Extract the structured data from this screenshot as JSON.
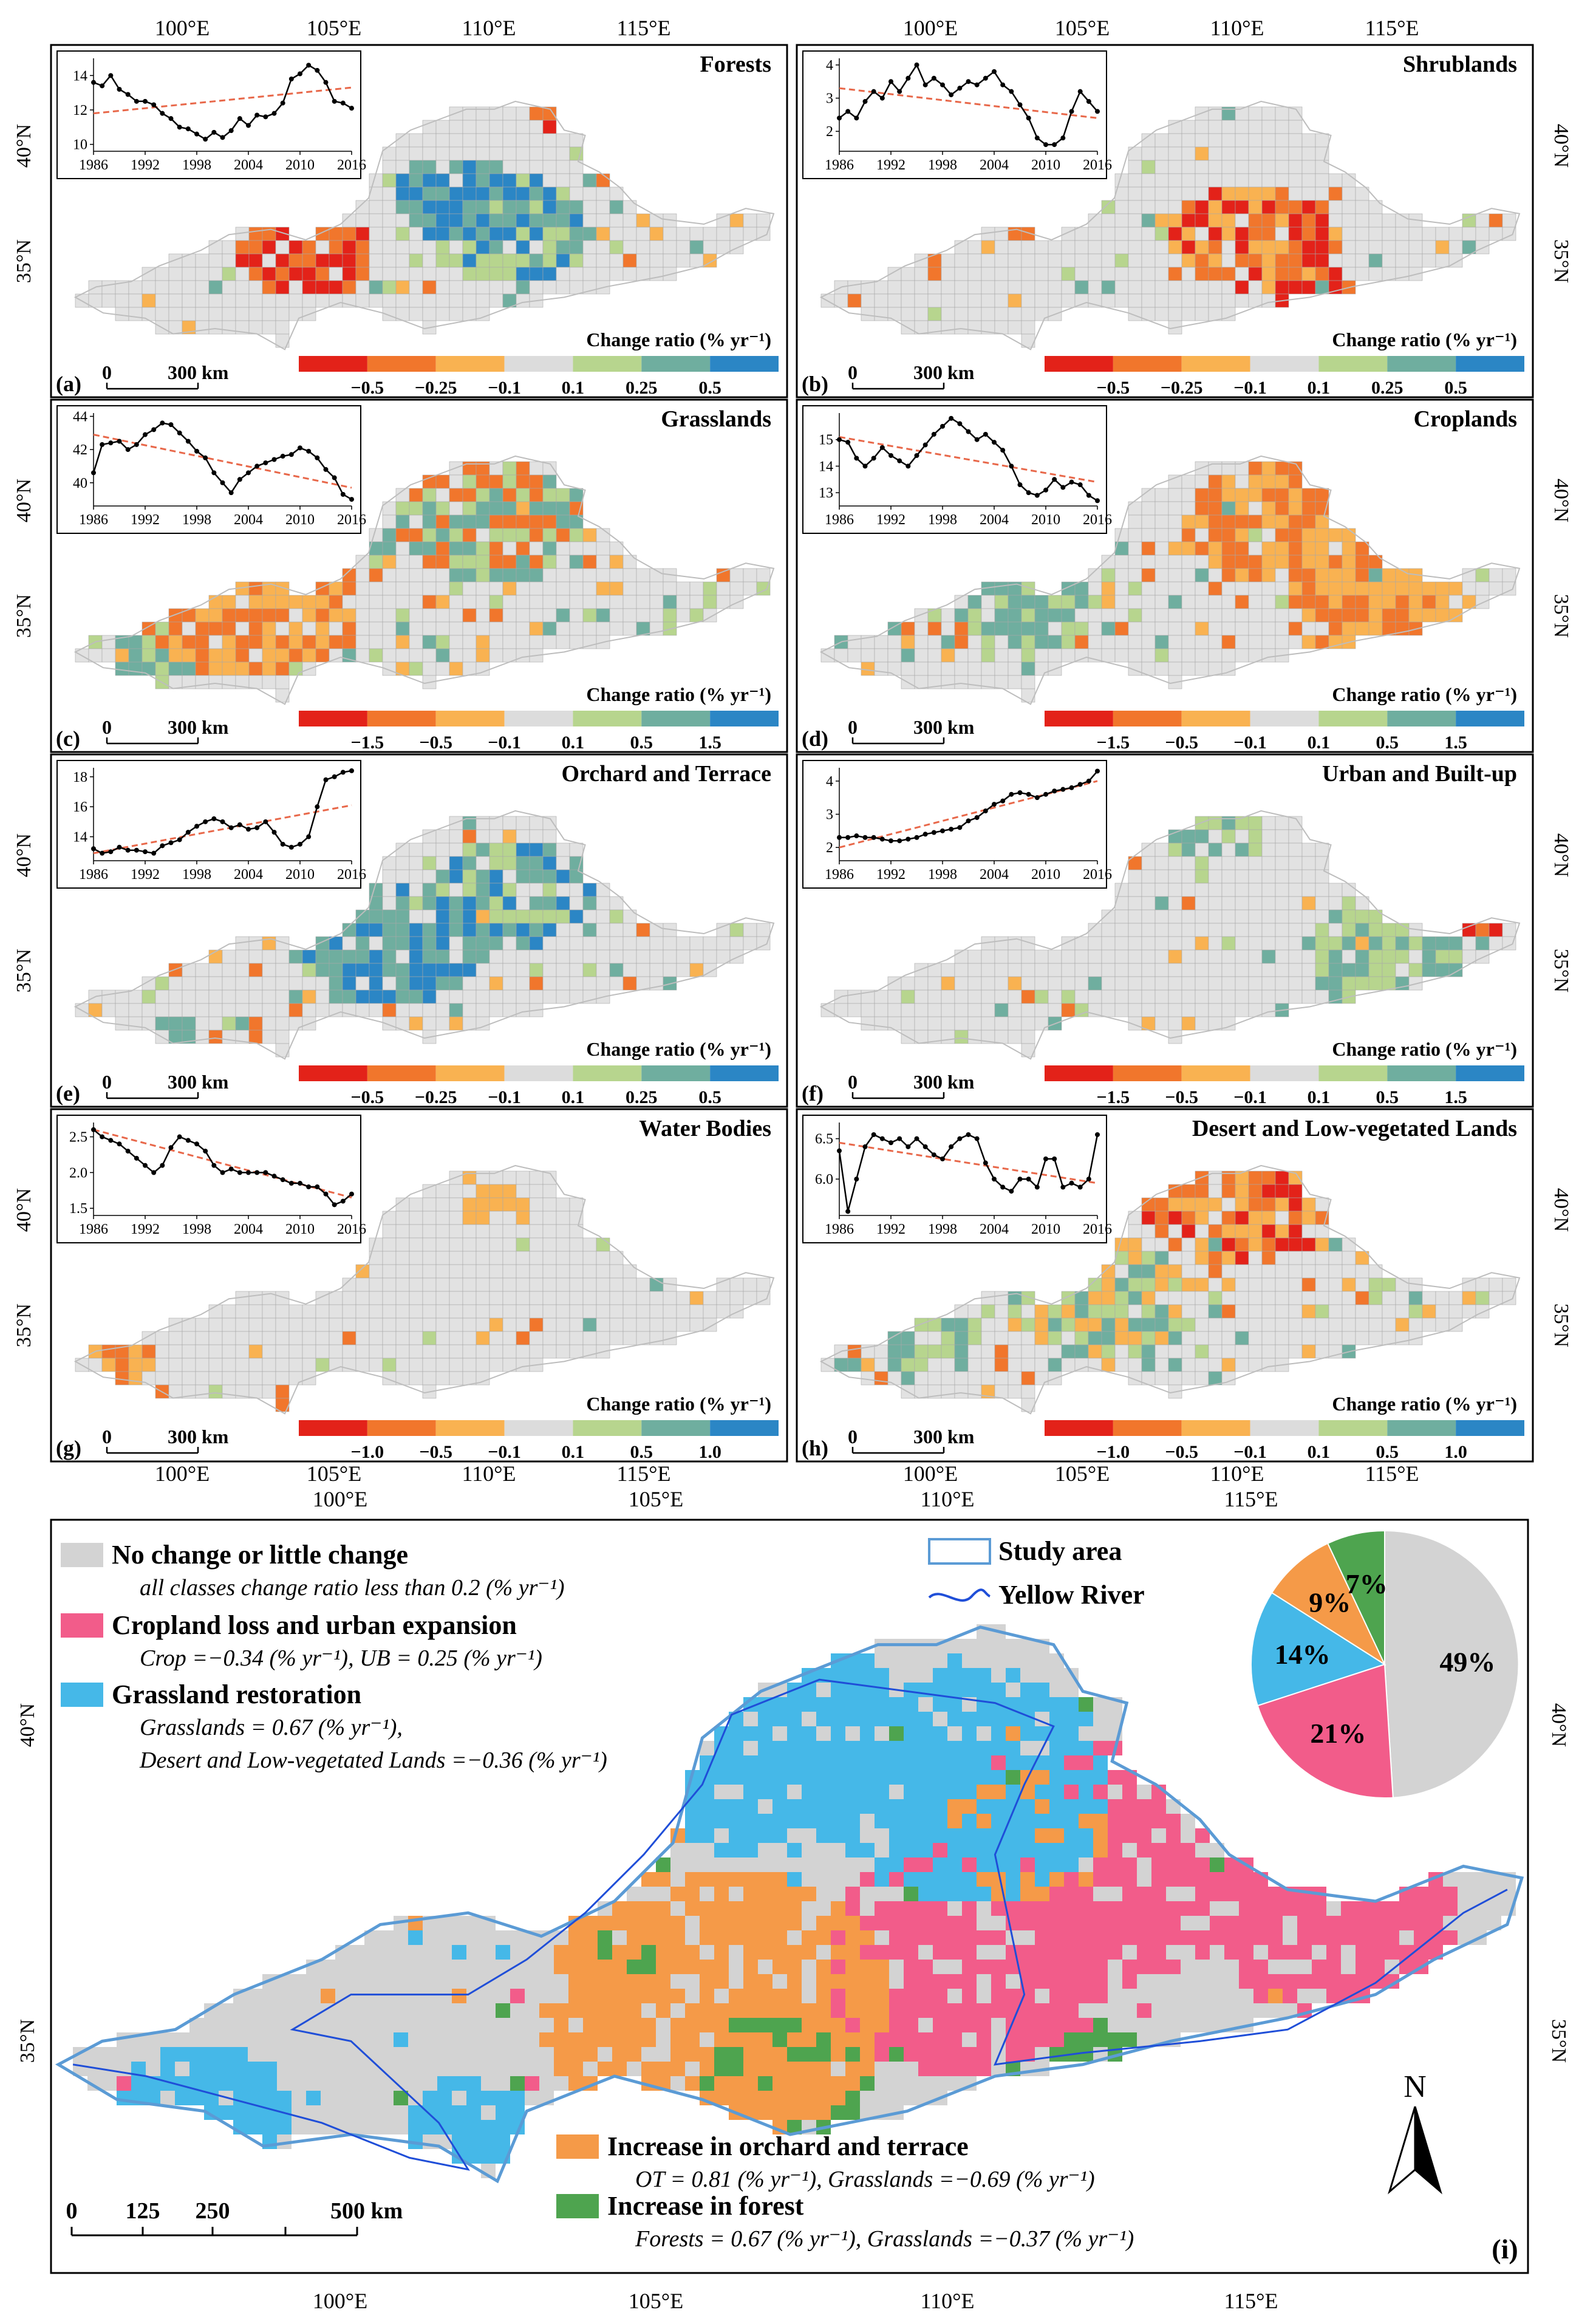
{
  "axes": {
    "top_lon": [
      "100°E",
      "105°E",
      "110°E",
      "115°E"
    ],
    "mid_left_lon": [
      "100°E",
      "105°E",
      "110°E",
      "115°E"
    ],
    "mid_left_lon2": [
      "100°E",
      "105°E"
    ],
    "mid_right_lon": [
      "100°E",
      "105°E",
      "110°E",
      "115°E"
    ],
    "mid_right_lon2": [
      "110°E",
      "115°E"
    ],
    "bottom_lon": [
      "100°E",
      "105°E",
      "110°E",
      "115°E"
    ],
    "lat": [
      "40°N",
      "35°N"
    ]
  },
  "panels": [
    {
      "id": "a",
      "letter": "(a)",
      "title": "Forests",
      "legend_title": "Change ratio (% yr⁻¹)",
      "legend_ticks": [
        "−0.5",
        "−0.25",
        "−0.1",
        "0.1",
        "0.25",
        "0.5"
      ],
      "scale_label": "300 km",
      "scale_zero": "0",
      "inset": {
        "years": [
          "1986",
          "1992",
          "1998",
          "2004",
          "2010",
          "2016"
        ],
        "yticks": [
          "10",
          "12",
          "14"
        ],
        "ymin": 9.6,
        "ymax": 15.0,
        "values": [
          13.6,
          13.4,
          14.0,
          13.2,
          12.9,
          12.5,
          12.5,
          12.3,
          11.8,
          11.5,
          11.0,
          10.9,
          10.6,
          10.3,
          10.7,
          10.4,
          10.8,
          11.5,
          11.1,
          11.7,
          11.6,
          11.8,
          12.4,
          13.8,
          14.1,
          14.6,
          14.3,
          13.6,
          12.5,
          12.4,
          12.1
        ],
        "trend": [
          11.8,
          13.3
        ]
      }
    },
    {
      "id": "b",
      "letter": "(b)",
      "title": "Shrublands",
      "legend_title": "Change ratio (% yr⁻¹)",
      "legend_ticks": [
        "−0.5",
        "−0.25",
        "−0.1",
        "0.1",
        "0.25",
        "0.5"
      ],
      "scale_label": "300 km",
      "scale_zero": "0",
      "inset": {
        "years": [
          "1986",
          "1992",
          "1998",
          "2004",
          "2010",
          "2016"
        ],
        "yticks": [
          "2",
          "3",
          "4"
        ],
        "ymin": 1.4,
        "ymax": 4.2,
        "values": [
          2.4,
          2.6,
          2.4,
          2.9,
          3.2,
          3.0,
          3.5,
          3.2,
          3.6,
          4.0,
          3.4,
          3.6,
          3.4,
          3.1,
          3.3,
          3.5,
          3.4,
          3.6,
          3.8,
          3.4,
          3.2,
          2.8,
          2.4,
          1.8,
          1.6,
          1.6,
          1.8,
          2.6,
          3.2,
          2.9,
          2.6
        ],
        "trend": [
          3.3,
          2.4
        ]
      }
    },
    {
      "id": "c",
      "letter": "(c)",
      "title": "Grasslands",
      "legend_title": "Change ratio (% yr⁻¹)",
      "legend_ticks": [
        "−1.5",
        "−0.5",
        "−0.1",
        "0.1",
        "0.5",
        "1.5"
      ],
      "scale_label": "300 km",
      "scale_zero": "0",
      "inset": {
        "years": [
          "1986",
          "1992",
          "1998",
          "2004",
          "2010",
          "2016"
        ],
        "yticks": [
          "40",
          "42",
          "44"
        ],
        "ymin": 38.6,
        "ymax": 44.2,
        "values": [
          40.6,
          42.3,
          42.4,
          42.5,
          42.0,
          42.3,
          42.9,
          43.2,
          43.6,
          43.5,
          43.0,
          42.5,
          41.9,
          41.5,
          40.6,
          40.0,
          39.4,
          40.2,
          40.6,
          41.0,
          41.2,
          41.4,
          41.6,
          41.7,
          42.1,
          41.9,
          41.5,
          40.8,
          40.3,
          39.3,
          39.0
        ],
        "trend": [
          42.9,
          39.7
        ]
      }
    },
    {
      "id": "d",
      "letter": "(d)",
      "title": "Croplands",
      "legend_title": "Change ratio (% yr⁻¹)",
      "legend_ticks": [
        "−1.5",
        "−0.5",
        "−0.1",
        "0.1",
        "0.5",
        "1.5"
      ],
      "scale_label": "300 km",
      "scale_zero": "0",
      "inset": {
        "years": [
          "1986",
          "1992",
          "1998",
          "2004",
          "2010",
          "2016"
        ],
        "yticks": [
          "13",
          "14",
          "15"
        ],
        "ymin": 12.5,
        "ymax": 16.0,
        "values": [
          15.0,
          14.9,
          14.3,
          14.0,
          14.3,
          14.7,
          14.4,
          14.2,
          14.0,
          14.4,
          14.8,
          15.2,
          15.5,
          15.8,
          15.6,
          15.3,
          15.0,
          15.2,
          14.9,
          14.6,
          14.0,
          13.3,
          13.0,
          12.9,
          13.1,
          13.5,
          13.2,
          13.4,
          13.3,
          12.9,
          12.7
        ],
        "trend": [
          15.1,
          13.4
        ]
      }
    },
    {
      "id": "e",
      "letter": "(e)",
      "title": "Orchard and Terrace",
      "legend_title": "Change ratio (% yr⁻¹)",
      "legend_ticks": [
        "−0.5",
        "−0.25",
        "−0.1",
        "0.1",
        "0.25",
        "0.5"
      ],
      "scale_label": "300 km",
      "scale_zero": "0",
      "inset": {
        "years": [
          "1986",
          "1992",
          "1998",
          "2004",
          "2010",
          "2016"
        ],
        "yticks": [
          "14",
          "16",
          "18"
        ],
        "ymin": 12.4,
        "ymax": 18.6,
        "values": [
          13.2,
          12.9,
          13.0,
          13.3,
          13.1,
          13.1,
          13.0,
          12.9,
          13.4,
          13.6,
          13.8,
          14.3,
          14.7,
          15.0,
          15.2,
          15.0,
          14.6,
          14.8,
          14.5,
          14.6,
          15.0,
          14.3,
          13.5,
          13.3,
          13.5,
          14.0,
          16.0,
          17.8,
          18.0,
          18.3,
          18.4
        ],
        "trend": [
          12.9,
          16.1
        ]
      }
    },
    {
      "id": "f",
      "letter": "(f)",
      "title": "Urban and Built-up",
      "legend_title": "Change ratio (% yr⁻¹)",
      "legend_ticks": [
        "−1.5",
        "−0.5",
        "−0.1",
        "0.1",
        "0.5",
        "1.5"
      ],
      "scale_label": "300 km",
      "scale_zero": "0",
      "inset": {
        "years": [
          "1986",
          "1992",
          "1998",
          "2004",
          "2010",
          "2016"
        ],
        "yticks": [
          "2",
          "3",
          "4"
        ],
        "ymin": 1.6,
        "ymax": 4.4,
        "values": [
          2.3,
          2.3,
          2.35,
          2.3,
          2.3,
          2.25,
          2.2,
          2.2,
          2.25,
          2.3,
          2.4,
          2.45,
          2.5,
          2.55,
          2.6,
          2.8,
          2.9,
          3.1,
          3.3,
          3.4,
          3.6,
          3.65,
          3.6,
          3.5,
          3.6,
          3.7,
          3.75,
          3.8,
          3.9,
          4.0,
          4.3
        ],
        "trend": [
          2.0,
          4.0
        ]
      }
    },
    {
      "id": "g",
      "letter": "(g)",
      "title": "Water Bodies",
      "legend_title": "Change ratio (% yr⁻¹)",
      "legend_ticks": [
        "−1.0",
        "−0.5",
        "−0.1",
        "0.1",
        "0.5",
        "1.0"
      ],
      "scale_label": "300 km",
      "scale_zero": "0",
      "inset": {
        "years": [
          "1986",
          "1992",
          "1998",
          "2004",
          "2010",
          "2016"
        ],
        "yticks": [
          "1.5",
          "2.0",
          "2.5"
        ],
        "ymin": 1.4,
        "ymax": 2.7,
        "values": [
          2.6,
          2.5,
          2.45,
          2.4,
          2.3,
          2.2,
          2.1,
          2.0,
          2.1,
          2.35,
          2.5,
          2.45,
          2.4,
          2.3,
          2.1,
          2.0,
          2.05,
          2.0,
          2.0,
          2.0,
          2.0,
          1.95,
          1.9,
          1.85,
          1.85,
          1.8,
          1.8,
          1.7,
          1.55,
          1.6,
          1.7
        ],
        "trend": [
          2.6,
          1.65
        ]
      }
    },
    {
      "id": "h",
      "letter": "(h)",
      "title": "Desert and Low-vegetated Lands",
      "legend_title": "Change ratio (% yr⁻¹)",
      "legend_ticks": [
        "−1.0",
        "−0.5",
        "−0.1",
        "0.1",
        "0.5",
        "1.0"
      ],
      "scale_label": "300 km",
      "scale_zero": "0",
      "inset": {
        "years": [
          "1986",
          "1992",
          "1998",
          "2004",
          "2010",
          "2016"
        ],
        "yticks": [
          "6.0",
          "6.5"
        ],
        "ymin": 5.55,
        "ymax": 6.7,
        "values": [
          6.35,
          5.6,
          6.0,
          6.4,
          6.55,
          6.5,
          6.45,
          6.5,
          6.4,
          6.5,
          6.4,
          6.3,
          6.25,
          6.4,
          6.5,
          6.55,
          6.5,
          6.2,
          6.0,
          5.9,
          5.85,
          6.0,
          6.0,
          5.9,
          6.25,
          6.25,
          5.9,
          5.95,
          5.9,
          6.0,
          6.55
        ],
        "trend": [
          6.45,
          5.95
        ]
      }
    }
  ],
  "main_map": {
    "letter": "(i)",
    "north": "N",
    "scale_labels": [
      "0",
      "125",
      "250",
      "500 km"
    ],
    "legend": [
      {
        "key": "no_change",
        "title": "No change or little change",
        "desc": "all classes change ratio less than 0.2 (% yr⁻¹)",
        "color": "#d3d3d3"
      },
      {
        "key": "cropland_loss",
        "title": "Cropland loss and urban expansion",
        "desc": "Crop =−0.34 (% yr⁻¹), UB = 0.25 (% yr⁻¹)",
        "color": "#f25c8a"
      },
      {
        "key": "grass_restore",
        "title": "Grassland restoration",
        "desc": "Grasslands = 0.67 (% yr⁻¹),",
        "desc2": "Desert and Low-vegetated Lands =−0.36 (% yr⁻¹)",
        "color": "#45b8e8"
      },
      {
        "key": "orchard",
        "title": "Increase in orchard and terrace",
        "desc": "OT = 0.81 (% yr⁻¹), Grasslands =−0.69 (% yr⁻¹)",
        "color": "#f59a48"
      },
      {
        "key": "forest",
        "title": "Increase in forest",
        "desc": "Forests = 0.67 (% yr⁻¹), Grasslands =−0.37 (% yr⁻¹)",
        "color": "#4ea44f"
      }
    ],
    "study_area": "Study area",
    "yellow_river": "Yellow River",
    "pie": [
      {
        "label": "49%",
        "value": 49,
        "color": "#d3d3d3"
      },
      {
        "label": "21%",
        "value": 21,
        "color": "#f25c8a"
      },
      {
        "label": "14%",
        "value": 14,
        "color": "#45b8e8"
      },
      {
        "label": "9%",
        "value": 9,
        "color": "#f59a48"
      },
      {
        "label": "7%",
        "value": 7,
        "color": "#4ea44f"
      }
    ]
  },
  "colors": {
    "div": [
      "#e32219",
      "#f1762c",
      "#f9b251",
      "#dcdcdc",
      "#b7d58e",
      "#6fae9f",
      "#2b86c5"
    ],
    "inset_line": "#000000",
    "trend": "#e8684a",
    "outline": "#5b9bd5",
    "river": "#1f4ed8"
  }
}
